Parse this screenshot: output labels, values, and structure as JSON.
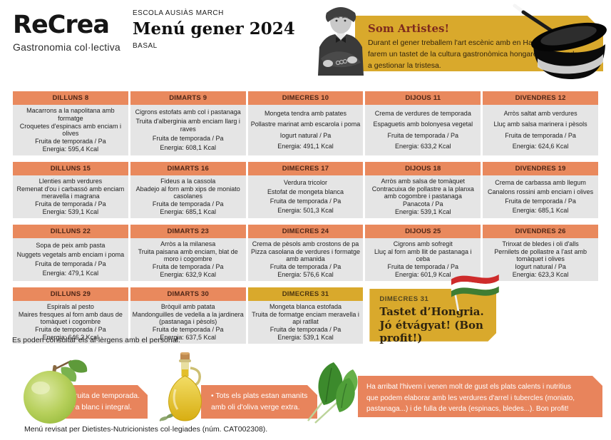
{
  "colors": {
    "orange": "#E9895D",
    "gold": "#D9A92C",
    "cell_bg": "#E5E5E5",
    "banner_orange": "#E8845C"
  },
  "header": {
    "logo": "ReCrea",
    "logo_sub": "Gastronomia col·lectiva",
    "school": "ESCOLA AUSIÀS MARCH",
    "title": "Menú gener 2024",
    "subtitle": "BASAL",
    "banner": {
      "title": "Som Artistes!",
      "text": "Durant el gener treballem l'art escènic amb en Harry Houdini, farem un tastet de la cultura gastronòmica hongaresa i aprendrem a gestionar la tristesa."
    }
  },
  "weeks": [
    {
      "days": [
        {
          "day": "DILLUNS 8",
          "lines": [
            "Macarrons a la napolitana amb formatge",
            "Croquetes d'espinacs amb enciam i olives",
            "Fruita de temporada / Pa",
            "Energia: 595,4 Kcal"
          ]
        },
        {
          "day": "DIMARTS 9",
          "lines": [
            "Cigrons estofats amb col i pastanaga",
            "Truita d'alberginia amb enciam llarg i raves",
            "Fruita de temporada / Pa",
            "Energia: 608,1 Kcal"
          ]
        },
        {
          "day": "DIMECRES 10",
          "lines": [
            "Mongeta tendra amb patates",
            "Pollastre marinat amb escarola i poma",
            "Iogurt natural / Pa",
            "Energia: 491,1 Kcal"
          ]
        },
        {
          "day": "DIJOUS 11",
          "lines": [
            "Crema de verdures de temporada",
            "Espaguetis amb bolonyesa vegetal",
            "Fruita de temporada / Pa",
            "Energia: 633,2 Kcal"
          ]
        },
        {
          "day": "DIVENDRES 12",
          "lines": [
            "Arròs saltat amb verdures",
            "Lluç amb salsa marinera i pèsols",
            "Fruita de temporada / Pa",
            "Energia: 624,6 Kcal"
          ]
        }
      ]
    },
    {
      "days": [
        {
          "day": "DILLUNS 15",
          "lines": [
            "Llenties amb verdures",
            "Remenat d'ou i carbassó amb enciam meravella i magrana",
            "Fruita de temporada / Pa",
            "Energia: 539,1 Kcal"
          ]
        },
        {
          "day": "DIMARTS 16",
          "lines": [
            "Fideus a la cassola",
            "Abadejo al forn amb xips de moniato casolanes",
            "Fruita de temporada / Pa",
            "Energia: 685,1 Kcal"
          ]
        },
        {
          "day": "DIMECRES 17",
          "lines": [
            "Verdura tricolor",
            "Estofat de mongeta blanca",
            "Fruita de temporada / Pa",
            "Energia: 501,3 Kcal"
          ]
        },
        {
          "day": "DIJOUS 18",
          "lines": [
            "Arròs amb salsa de tomàquet",
            "Contracuixa de pollastre a la planxa amb cogombre i pastanaga",
            "Panacota / Pa",
            "Energia: 539,1 Kcal"
          ]
        },
        {
          "day": "DIVENDRES 19",
          "lines": [
            "Crema de carbassa amb llegum",
            "Canalons rossini amb enciam i olives",
            "Fruita de temporada / Pa",
            "Energia: 685,1 Kcal"
          ]
        }
      ]
    },
    {
      "days": [
        {
          "day": "DILLUNS 22",
          "lines": [
            "Sopa de peix amb pasta",
            "Nuggets vegetals amb enciam i poma",
            "Fruita de temporada / Pa",
            "Energia: 479,1 Kcal"
          ]
        },
        {
          "day": "DIMARTS 23",
          "lines": [
            "Arròs a la milanesa",
            "Truita paisana amb enciam, blat de moro i cogombre",
            "Fruita de temporada / Pa",
            "Energia: 632,9 Kcal"
          ]
        },
        {
          "day": "DIMECRES 24",
          "lines": [
            "Crema de pèsols amb crostons de pa",
            "Pizza casolana de verdures i formatge amb amanida",
            "Fruita de temporada / Pa",
            "Energia: 576,6 Kcal"
          ]
        },
        {
          "day": "DIJOUS 25",
          "lines": [
            "Cigrons amb sofregit",
            "Lluç al forn amb llit de pastanaga i ceba",
            "Fruita de temporada / Pa",
            "Energia: 601,9 Kcal"
          ]
        },
        {
          "day": "DIVENDRES 26",
          "lines": [
            "Trinxat de bledes i oli d'alls",
            "Pernilets de pollastre a l'ast amb tomàquet i olives",
            "Iogurt natural / Pa",
            "Energia: 623,3 Kcal"
          ]
        }
      ]
    },
    {
      "days": [
        {
          "day": "DILLUNS 29",
          "lines": [
            "Espirals al pesto",
            "Maires fresques al forn amb daus de tomàquet i cogombre",
            "Fruita de temporada / Pa",
            "Energia: 646,2 Kcal"
          ]
        },
        {
          "day": "DIMARTS 30",
          "lines": [
            "Bròquil amb patata",
            "Mandonguilles de vedella a la jardinera (pastanaga i pèsols)",
            "Fruita de temporada / Pa",
            "Energia: 637,5 Kcal"
          ]
        },
        {
          "day": "DIMECRES 31",
          "header_style": "gold",
          "lines": [
            "Mongeta blanca estofada",
            "Truita de formatge enciam meravella i api ratllat",
            "Fruita de temporada / Pa",
            "Energia: 539,1 Kcal"
          ]
        }
      ]
    }
  ],
  "special": {
    "day": "DIMECRES 31",
    "title": "Tastet d’Hongria.",
    "subtitle": "Jó étvágyat! (Bon profit!)"
  },
  "notes": {
    "allergens": "Es poden consultar els al·lèrgens amb el personal.",
    "footer": "Menú revisat per Dietistes-Nutricionistes col·legiades (núm. CAT002308)."
  },
  "bottom_notes": {
    "note1": {
      "line1": "• Fruita de temporada.",
      "line2": "• Pa blanc i integral."
    },
    "note2": {
      "line1": "• Tots els plats estan amanits",
      "line2": "amb oli d'oliva verge extra."
    },
    "note3": {
      "line1": "Ha arribat l'hivern i venen molt de gust els plats calents i nutritius",
      "line2": "que podem elaborar amb les verdures d'arrel i tubercles (moniato,",
      "line3": "pastanaga...) i de fulla de verda (espinacs, bledes...). Bon profit!"
    }
  }
}
